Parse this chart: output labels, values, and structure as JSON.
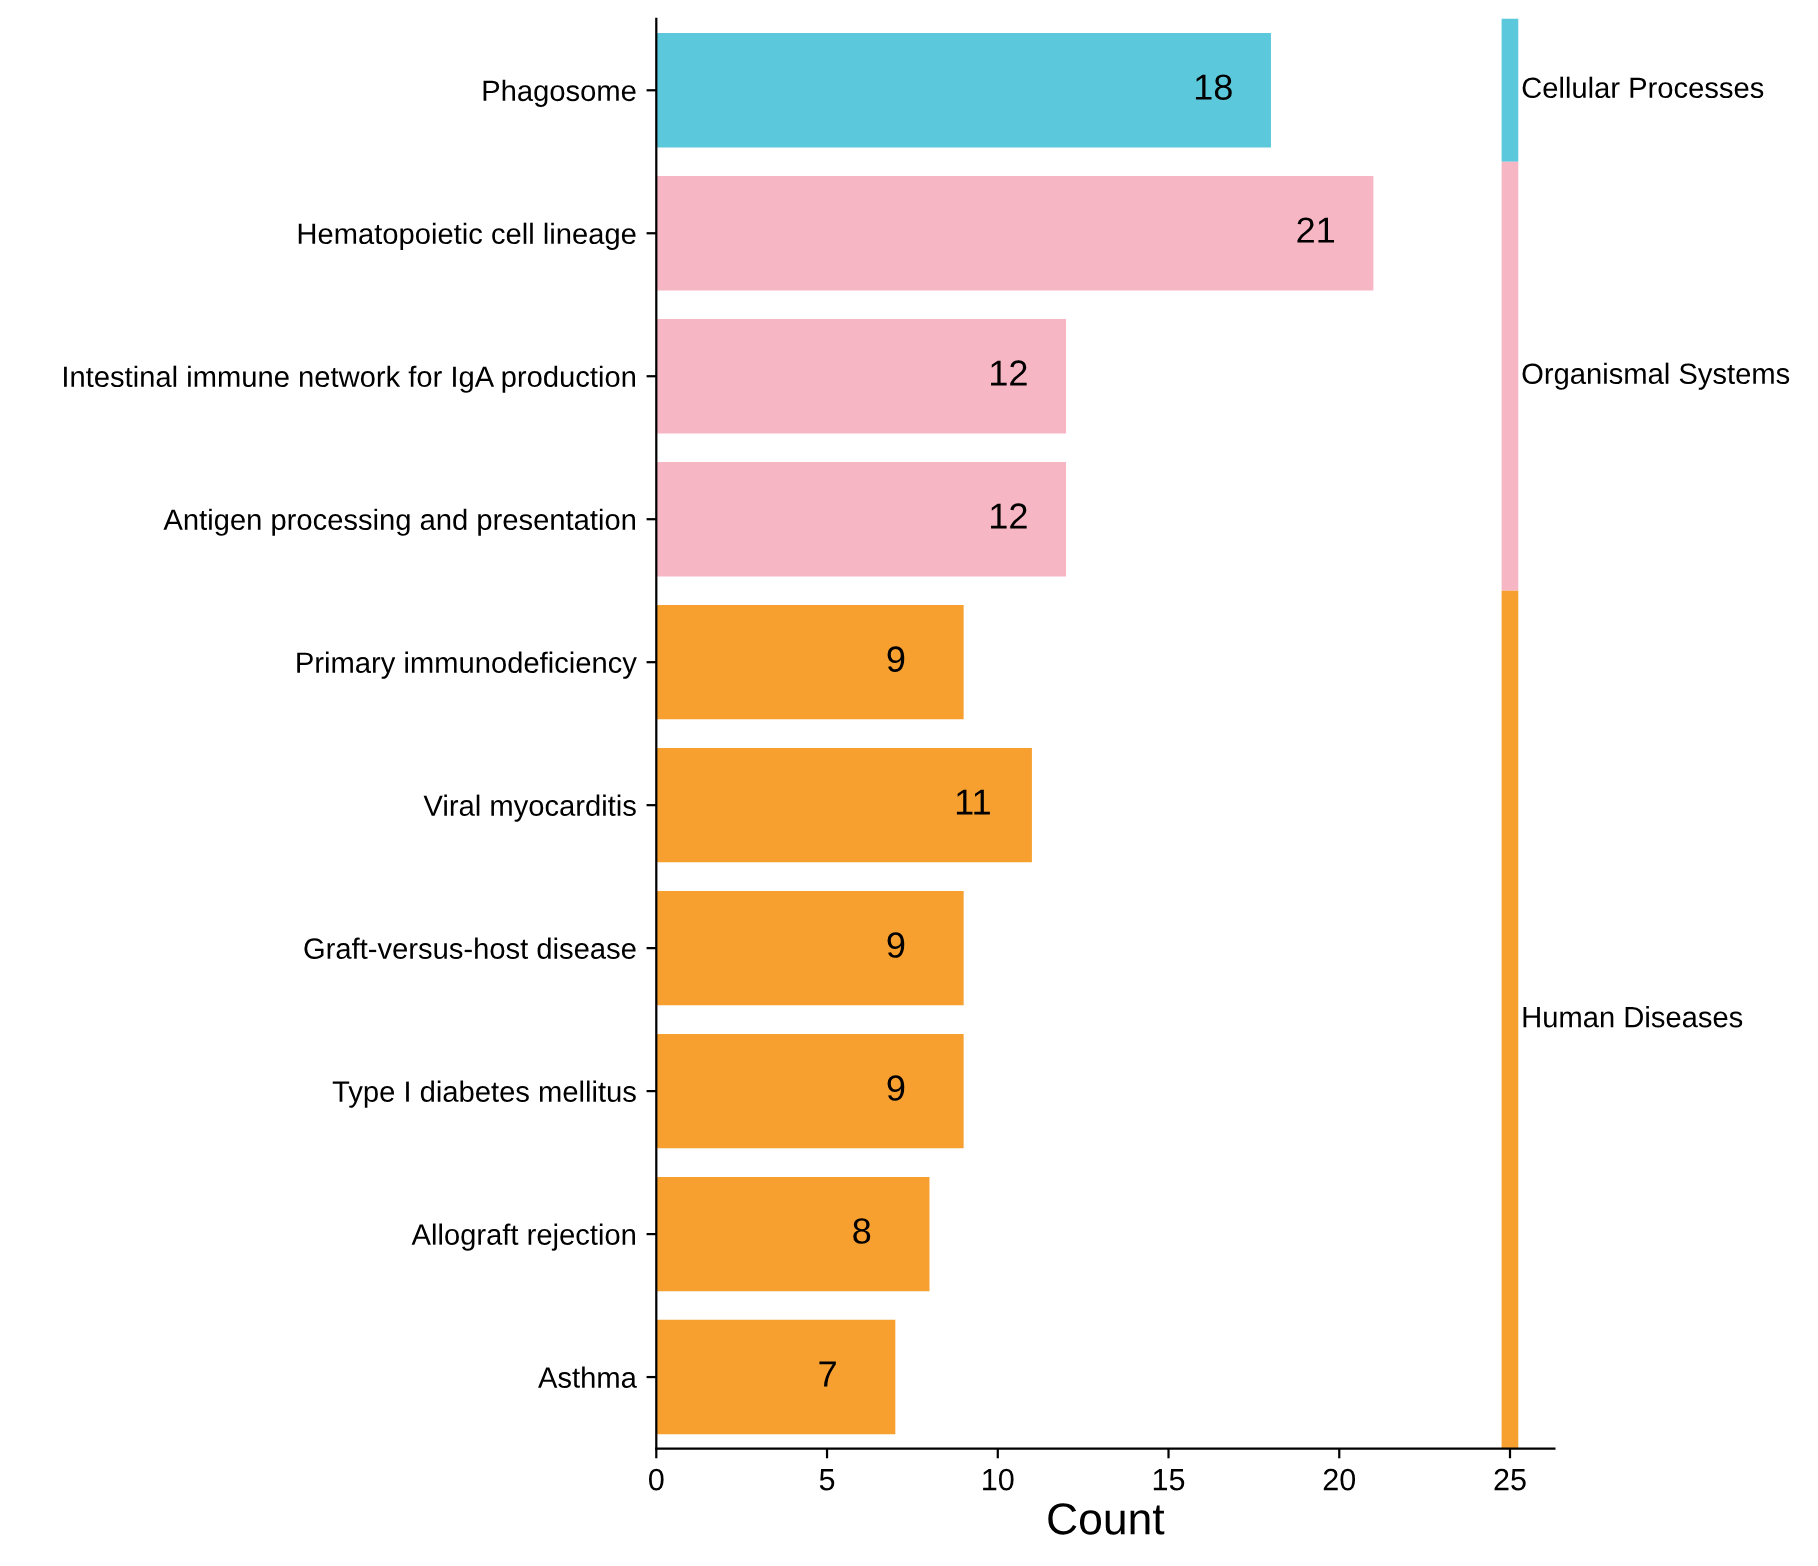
{
  "chart_data": {
    "type": "bar",
    "orientation": "horizontal",
    "xlabel": "Count",
    "categories": [
      "Phagosome",
      "Hematopoietic cell lineage",
      "Intestinal immune network for IgA production",
      "Antigen processing and presentation",
      "Primary immunodeficiency",
      "Viral myocarditis",
      "Graft-versus-host disease",
      "Type I diabetes mellitus",
      "Allograft rejection",
      "Asthma"
    ],
    "values": [
      18,
      21,
      12,
      12,
      9,
      11,
      9,
      9,
      8,
      7
    ],
    "colors": [
      "#5bc8dc",
      "#f7b6c3",
      "#f7b6c3",
      "#f7b6c3",
      "#f7a030",
      "#f7a030",
      "#f7a030",
      "#f7a030",
      "#f7a030",
      "#f7a030"
    ],
    "data_labels": true,
    "xlim": [
      0,
      26.3
    ],
    "xticks": [
      0,
      5,
      10,
      15,
      20,
      25
    ],
    "grid": false,
    "legend": false,
    "annotations": [
      "Cellular Processes",
      "Organismal Systems",
      "Human Diseases"
    ]
  }
}
